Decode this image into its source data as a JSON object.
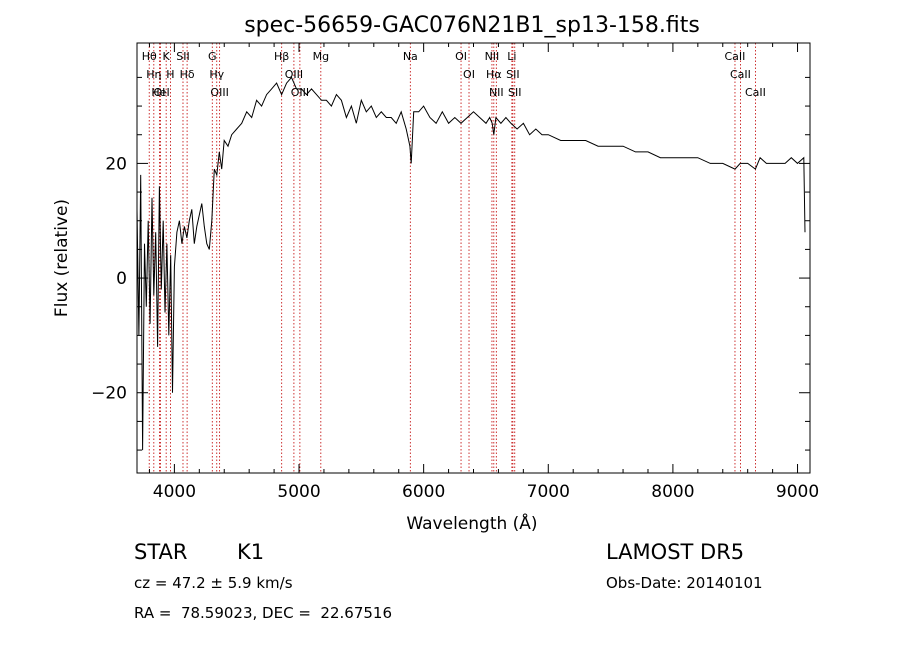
{
  "chart_data": {
    "type": "line",
    "title": "spec-56659-GAC076N21B1_sp13-158.fits",
    "xlabel": "Wavelength (Å)",
    "ylabel": "Flux (relative)",
    "xlim": [
      3700,
      9100
    ],
    "ylim": [
      -34,
      41
    ],
    "xticks": [
      4000,
      5000,
      6000,
      7000,
      8000,
      9000
    ],
    "yticks": [
      -20,
      0,
      20
    ],
    "grid": false,
    "series": [
      {
        "x": [
          3700,
          3715,
          3730,
          3745,
          3760,
          3775,
          3790,
          3805,
          3820,
          3835,
          3850,
          3865,
          3880,
          3895,
          3910,
          3925,
          3940,
          3955,
          3970,
          3985,
          4000,
          4020,
          4040,
          4060,
          4080,
          4100,
          4120,
          4140,
          4160,
          4180,
          4200,
          4220,
          4240,
          4260,
          4280,
          4300,
          4320,
          4340,
          4360,
          4380,
          4400,
          4430,
          4460,
          4500,
          4540,
          4580,
          4620,
          4660,
          4700,
          4740,
          4780,
          4820,
          4860,
          4900,
          4940,
          4980,
          5020,
          5060,
          5100,
          5140,
          5180,
          5220,
          5260,
          5300,
          5340,
          5380,
          5420,
          5460,
          5500,
          5540,
          5580,
          5620,
          5660,
          5700,
          5740,
          5780,
          5820,
          5860,
          5890,
          5900,
          5920,
          5960,
          6000,
          6050,
          6100,
          6150,
          6200,
          6250,
          6300,
          6350,
          6400,
          6450,
          6500,
          6530,
          6550,
          6563,
          6580,
          6620,
          6660,
          6700,
          6750,
          6800,
          6850,
          6900,
          6950,
          7000,
          7100,
          7200,
          7300,
          7400,
          7500,
          7600,
          7700,
          7800,
          7900,
          8000,
          8100,
          8200,
          8300,
          8400,
          8498,
          8540,
          8600,
          8662,
          8700,
          8750,
          8800,
          8850,
          8900,
          8950,
          9000,
          9050,
          9060
        ],
        "y": [
          12,
          -10,
          18,
          -30,
          6,
          -5,
          10,
          -8,
          14,
          -3,
          8,
          -12,
          16,
          -2,
          10,
          -6,
          6,
          -10,
          4,
          -20,
          2,
          8,
          10,
          6,
          9,
          7,
          10,
          12,
          6,
          9,
          11,
          13,
          9,
          6,
          5,
          10,
          19,
          18,
          22,
          19,
          24,
          23,
          25,
          26,
          27,
          29,
          28,
          31,
          30,
          32,
          33,
          34,
          32,
          34,
          35,
          33,
          33,
          32,
          33,
          32,
          31,
          31,
          30,
          32,
          31,
          28,
          30,
          27,
          31,
          29,
          30,
          28,
          29,
          28,
          28,
          27,
          29,
          26,
          23,
          20,
          29,
          29,
          30,
          28,
          27,
          29,
          27,
          28,
          27,
          28,
          29,
          28,
          27,
          28,
          27,
          25,
          28,
          27,
          28,
          27,
          26,
          27,
          25,
          26,
          25,
          25,
          24,
          24,
          24,
          23,
          23,
          23,
          22,
          22,
          21,
          21,
          21,
          21,
          20,
          20,
          19,
          20,
          20,
          19,
          21,
          20,
          20,
          20,
          20,
          21,
          20,
          21,
          8
        ]
      }
    ],
    "lines": [
      {
        "label": "Hθ",
        "x": 3798
      },
      {
        "label": "Hη",
        "x": 3835
      },
      {
        "label": "OI",
        "x": 3880
      },
      {
        "label": "HeI",
        "x": 3889
      },
      {
        "label": "K",
        "x": 3934
      },
      {
        "label": "H",
        "x": 3968
      },
      {
        "label": "SII",
        "x": 4069
      },
      {
        "label": "Hδ",
        "x": 4102
      },
      {
        "label": "G",
        "x": 4304
      },
      {
        "label": "Hγ",
        "x": 4340
      },
      {
        "label": "OIII",
        "x": 4363
      },
      {
        "label": "Hβ",
        "x": 4861
      },
      {
        "label": "OIII",
        "x": 4959
      },
      {
        "label": "OIII",
        "x": 5007
      },
      {
        "label": "Mg",
        "x": 5175
      },
      {
        "label": "Na",
        "x": 5893
      },
      {
        "label": "OI",
        "x": 6300
      },
      {
        "label": "OI",
        "x": 6364
      },
      {
        "label": "NII",
        "x": 6548
      },
      {
        "label": "Hα",
        "x": 6563
      },
      {
        "label": "NII",
        "x": 6583
      },
      {
        "label": "Li",
        "x": 6708
      },
      {
        "label": "SII",
        "x": 6716
      },
      {
        "label": "SII",
        "x": 6731
      },
      {
        "label": "CaII",
        "x": 8498
      },
      {
        "label": "CaII",
        "x": 8542
      },
      {
        "label": "CaII",
        "x": 8662
      }
    ]
  },
  "info": {
    "class_label": "STAR",
    "subclass": "K1",
    "survey": "LAMOST DR5",
    "cz": "cz = 47.2 ± 5.9 km/s",
    "obs_date": "Obs-Date: 20140101",
    "coords": "RA =  78.59023, DEC =  22.67516"
  }
}
